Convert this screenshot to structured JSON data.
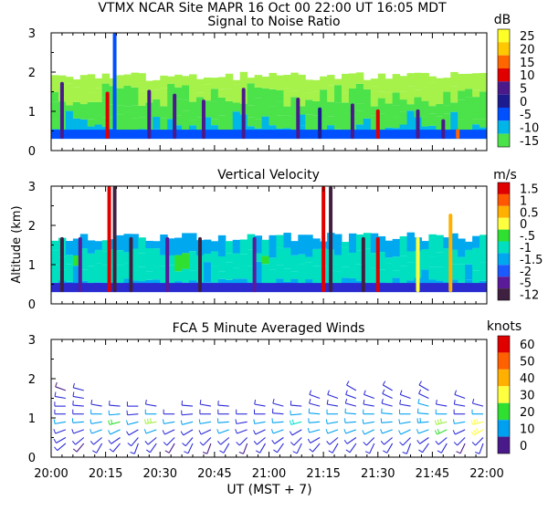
{
  "header": {
    "title": "VTMX   NCAR Site   MAPR 16 Oct 00   22:00 UT   16:05   MDT"
  },
  "colors": {
    "snr_scale": [
      "#a6f24a",
      "#4ce24a",
      "#00b6e8",
      "#0050ff",
      "#1c1c90",
      "#4a1a8a",
      "#e00000",
      "#ff6600",
      "#ffc800",
      "#ffff28"
    ],
    "vv_scale": [
      "#402040",
      "#5a1a9a",
      "#2a2ad0",
      "#1a5aff",
      "#00a8f0",
      "#00e0c0",
      "#30e030",
      "#ffff40",
      "#ffb000",
      "#ff5800",
      "#e00000"
    ],
    "wind_scale": [
      "#4a1a8a",
      "#2a2ad8",
      "#00a0f0",
      "#00e0d0",
      "#30e030",
      "#a0f040",
      "#ffff40",
      "#ffd000",
      "#ff9000",
      "#ff4000",
      "#e00000"
    ]
  },
  "chart_data": [
    {
      "type": "heatmap",
      "title": "Signal to Noise Ratio",
      "units": "dB",
      "ylabel": "",
      "ylim": [
        0,
        3
      ],
      "yticks": [
        "0",
        "1",
        "2",
        "3"
      ],
      "xlim_minutes": [
        0,
        120
      ],
      "colorbar_labels": [
        "25",
        "20",
        "15",
        "10",
        "5",
        "0",
        "-5",
        "-10",
        "-15"
      ],
      "colorbar_range": [
        -17.5,
        27.5
      ],
      "layers": [
        {
          "top": 0.3,
          "value": -4
        },
        {
          "top": 0.55,
          "value": -7
        },
        {
          "top": 0.9,
          "value": -9
        },
        {
          "top": 1.25,
          "value": -10
        },
        {
          "top": 1.6,
          "value": -13
        },
        {
          "top": 1.9,
          "value": -14
        }
      ],
      "plumes": [
        {
          "t": 3,
          "top": 1.75,
          "value": 7
        },
        {
          "t": 15.5,
          "top": 1.5,
          "value": 12
        },
        {
          "t": 17.5,
          "top": 3.0,
          "value": -2
        },
        {
          "t": 27,
          "top": 1.55,
          "value": 8
        },
        {
          "t": 34,
          "top": 1.45,
          "value": 6
        },
        {
          "t": 42,
          "top": 1.3,
          "value": 6
        },
        {
          "t": 53,
          "top": 1.6,
          "value": 6
        },
        {
          "t": 68,
          "top": 1.35,
          "value": 8
        },
        {
          "t": 74,
          "top": 1.1,
          "value": 3
        },
        {
          "t": 83,
          "top": 1.2,
          "value": 7
        },
        {
          "t": 90,
          "top": 1.05,
          "value": 13
        },
        {
          "t": 101,
          "top": 1.05,
          "value": 7
        },
        {
          "t": 108,
          "top": 0.8,
          "value": 7
        },
        {
          "t": 112,
          "top": 0.55,
          "value": 17
        }
      ]
    },
    {
      "type": "heatmap",
      "title": "Vertical Velocity",
      "units": "m/s",
      "ylabel": "Altitude (km)",
      "ylim": [
        0,
        3
      ],
      "yticks": [
        "0",
        "1",
        "2",
        "3"
      ],
      "xlim_minutes": [
        0,
        120
      ],
      "colorbar_labels": [
        "1.5",
        "1",
        "0.5",
        "0",
        "-.5",
        "-1",
        "-1.5",
        "-2",
        "-5",
        "-12"
      ],
      "layers": [
        {
          "top": 0.3,
          "value": -1.0
        },
        {
          "top": 0.55,
          "value": -0.4
        },
        {
          "top": 0.95,
          "value": -0.1
        },
        {
          "top": 1.3,
          "value": 0.1
        },
        {
          "top": 1.7,
          "value": -0.2
        }
      ],
      "plumes": [
        {
          "t": 3,
          "top": 1.7,
          "value": -1.6
        },
        {
          "t": 8,
          "top": 1.7,
          "value": -1.3
        },
        {
          "t": 16,
          "top": 3.0,
          "value": 1.8
        },
        {
          "t": 17.5,
          "top": 3.0,
          "value": -5
        },
        {
          "t": 22,
          "top": 1.7,
          "value": -1.5
        },
        {
          "t": 32,
          "top": 1.7,
          "value": -1.2
        },
        {
          "t": 41,
          "top": 1.7,
          "value": -1.6
        },
        {
          "t": 56,
          "top": 1.7,
          "value": -1.4
        },
        {
          "t": 75,
          "top": 3.0,
          "value": 1.7
        },
        {
          "t": 77,
          "top": 3.0,
          "value": -12
        },
        {
          "t": 86,
          "top": 1.7,
          "value": -1.5
        },
        {
          "t": 90,
          "top": 1.7,
          "value": 1.6
        },
        {
          "t": 101,
          "top": 1.7,
          "value": 0.7
        },
        {
          "t": 110,
          "top": 2.3,
          "value": 1.0
        }
      ]
    },
    {
      "type": "scatter",
      "title": "FCA 5 Minute Averaged Winds",
      "units": "knots",
      "ylim": [
        0,
        3
      ],
      "yticks": [
        "0",
        "1",
        "2",
        "3"
      ],
      "xlim_minutes": [
        0,
        120
      ],
      "xticks": [
        "20:00",
        "20:15",
        "20:30",
        "20:45",
        "21:00",
        "21:15",
        "21:30",
        "21:45",
        "22:00"
      ],
      "xlabel": "UT  (MST + 7)",
      "colorbar_labels": [
        "60",
        "50",
        "40",
        "30",
        "20",
        "10",
        "0"
      ],
      "colorbar_range": [
        0,
        60
      ],
      "profile_times": [
        4,
        9,
        14,
        19,
        24,
        29,
        34,
        39,
        44,
        49,
        54,
        59,
        64,
        69,
        74,
        79,
        84,
        89,
        94,
        99,
        104,
        109,
        114,
        119
      ],
      "barb_heights": [
        0.35,
        0.5,
        0.7,
        0.9,
        1.1,
        1.3,
        1.5,
        1.7
      ],
      "wind_speed": [
        [
          6,
          8,
          10,
          12,
          9,
          7,
          6,
          5
        ],
        [
          5,
          7,
          9,
          11,
          10,
          8,
          7,
          6
        ],
        [
          6,
          8,
          11,
          13,
          11,
          9,
          0,
          0
        ],
        [
          7,
          9,
          12,
          22,
          14,
          9,
          0,
          0
        ],
        [
          6,
          8,
          10,
          12,
          10,
          8,
          0,
          0
        ],
        [
          7,
          9,
          11,
          28,
          12,
          9,
          0,
          0
        ],
        [
          5,
          8,
          10,
          11,
          9,
          0,
          0,
          0
        ],
        [
          6,
          8,
          9,
          12,
          10,
          8,
          0,
          0
        ],
        [
          5,
          7,
          10,
          11,
          9,
          7,
          0,
          0
        ],
        [
          6,
          8,
          11,
          12,
          10,
          8,
          0,
          0
        ],
        [
          5,
          7,
          9,
          10,
          9,
          0,
          0,
          0
        ],
        [
          6,
          8,
          10,
          11,
          9,
          7,
          0,
          0
        ],
        [
          7,
          9,
          11,
          12,
          10,
          8,
          0,
          0
        ],
        [
          6,
          8,
          10,
          18,
          11,
          9,
          0,
          0
        ],
        [
          7,
          9,
          12,
          14,
          12,
          10,
          8,
          0
        ],
        [
          6,
          8,
          11,
          13,
          11,
          9,
          7,
          0
        ],
        [
          7,
          10,
          12,
          14,
          12,
          10,
          9,
          7
        ],
        [
          6,
          9,
          11,
          13,
          11,
          10,
          9,
          0
        ],
        [
          7,
          10,
          12,
          14,
          12,
          10,
          8,
          6
        ],
        [
          6,
          9,
          11,
          12,
          11,
          9,
          8,
          0
        ],
        [
          7,
          10,
          12,
          15,
          13,
          11,
          9,
          7
        ],
        [
          6,
          8,
          24,
          30,
          14,
          10,
          0,
          0
        ],
        [
          5,
          8,
          10,
          12,
          10,
          9,
          8,
          0
        ],
        [
          6,
          9,
          33,
          38,
          12,
          10,
          0,
          0
        ]
      ],
      "wind_direction_deg": [
        [
          230,
          240,
          250,
          260,
          270,
          270,
          280,
          290
        ],
        [
          220,
          230,
          250,
          265,
          270,
          275,
          280,
          285
        ],
        [
          210,
          230,
          250,
          260,
          270,
          280,
          0,
          0
        ],
        [
          220,
          235,
          245,
          255,
          265,
          275,
          0,
          0
        ],
        [
          200,
          220,
          240,
          255,
          265,
          270,
          0,
          0
        ],
        [
          215,
          230,
          250,
          260,
          270,
          280,
          0,
          0
        ],
        [
          210,
          225,
          245,
          260,
          270,
          0,
          0,
          0
        ],
        [
          205,
          220,
          240,
          255,
          265,
          275,
          0,
          0
        ],
        [
          200,
          225,
          245,
          260,
          270,
          280,
          0,
          0
        ],
        [
          210,
          230,
          250,
          265,
          270,
          275,
          0,
          0
        ],
        [
          200,
          225,
          250,
          260,
          270,
          0,
          0,
          0
        ],
        [
          210,
          230,
          245,
          260,
          270,
          280,
          0,
          0
        ],
        [
          215,
          235,
          250,
          265,
          275,
          285,
          0,
          0
        ],
        [
          205,
          225,
          240,
          255,
          265,
          275,
          0,
          0
        ],
        [
          220,
          240,
          255,
          265,
          275,
          285,
          290,
          0
        ],
        [
          210,
          230,
          250,
          260,
          270,
          280,
          290,
          0
        ],
        [
          215,
          235,
          250,
          265,
          275,
          285,
          290,
          300
        ],
        [
          205,
          225,
          245,
          260,
          270,
          280,
          290,
          0
        ],
        [
          210,
          230,
          250,
          265,
          275,
          285,
          295,
          300
        ],
        [
          200,
          225,
          245,
          260,
          270,
          280,
          290,
          0
        ],
        [
          215,
          235,
          250,
          265,
          275,
          285,
          295,
          300
        ],
        [
          210,
          230,
          245,
          255,
          270,
          280,
          0,
          0
        ],
        [
          205,
          225,
          245,
          260,
          270,
          280,
          290,
          0
        ],
        [
          200,
          225,
          240,
          255,
          270,
          285,
          0,
          0
        ]
      ]
    }
  ]
}
